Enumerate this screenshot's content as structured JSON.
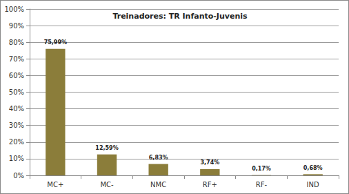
{
  "chart_data": {
    "type": "bar",
    "title": "Treinadores: TR Infanto-Juvenis",
    "categories": [
      "MC+",
      "MC-",
      "NMC",
      "RF+",
      "RF-",
      "IND"
    ],
    "values": [
      75.99,
      12.59,
      6.83,
      3.74,
      0.17,
      0.68
    ],
    "value_labels": [
      "75,99%",
      "12,59%",
      "6,83%",
      "3,74%",
      "0,17%",
      "0,68%"
    ],
    "color": "#8b7d3a",
    "ylim": [
      0,
      100
    ],
    "yticks": [
      {
        "value": 0,
        "label": "0%"
      },
      {
        "value": 10,
        "label": "10%"
      },
      {
        "value": 20,
        "label": "20%"
      },
      {
        "value": 30,
        "label": "30%"
      },
      {
        "value": 40,
        "label": "40%"
      },
      {
        "value": 50,
        "label": "50%"
      },
      {
        "value": 60,
        "label": "60%"
      },
      {
        "value": 70,
        "label": "70%"
      },
      {
        "value": 80,
        "label": "80%"
      },
      {
        "value": 90,
        "label": "90%"
      },
      {
        "value": 100,
        "label": "100%"
      }
    ],
    "grid": true,
    "data_labels": true
  }
}
